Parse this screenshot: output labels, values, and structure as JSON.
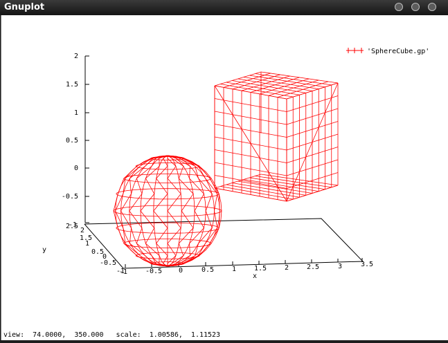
{
  "window": {
    "title": "Gnuplot",
    "controls": [
      "minimize-icon",
      "maximize-icon",
      "close-icon"
    ]
  },
  "plot": {
    "legend": "'SphereCube.gp'",
    "series_color": "#ff0000",
    "axis_color": "#000000",
    "z_ticks": [
      "2",
      "1.5",
      "1",
      "0.5",
      "0",
      "-0.5",
      "-1"
    ],
    "x_ticks": [
      "-1",
      "-0.5",
      "0",
      "0.5",
      "1",
      "1.5",
      "2",
      "2.5",
      "3",
      "3.5"
    ],
    "y_ticks": [
      "2.5",
      "2",
      "1.5",
      "1",
      "0.5",
      "0",
      "-0.5",
      "-1"
    ],
    "x_label": "x",
    "y_label": "y"
  },
  "status": {
    "text": "view:  74.0000,  350.000   scale:  1.00586,  1.11523"
  }
}
